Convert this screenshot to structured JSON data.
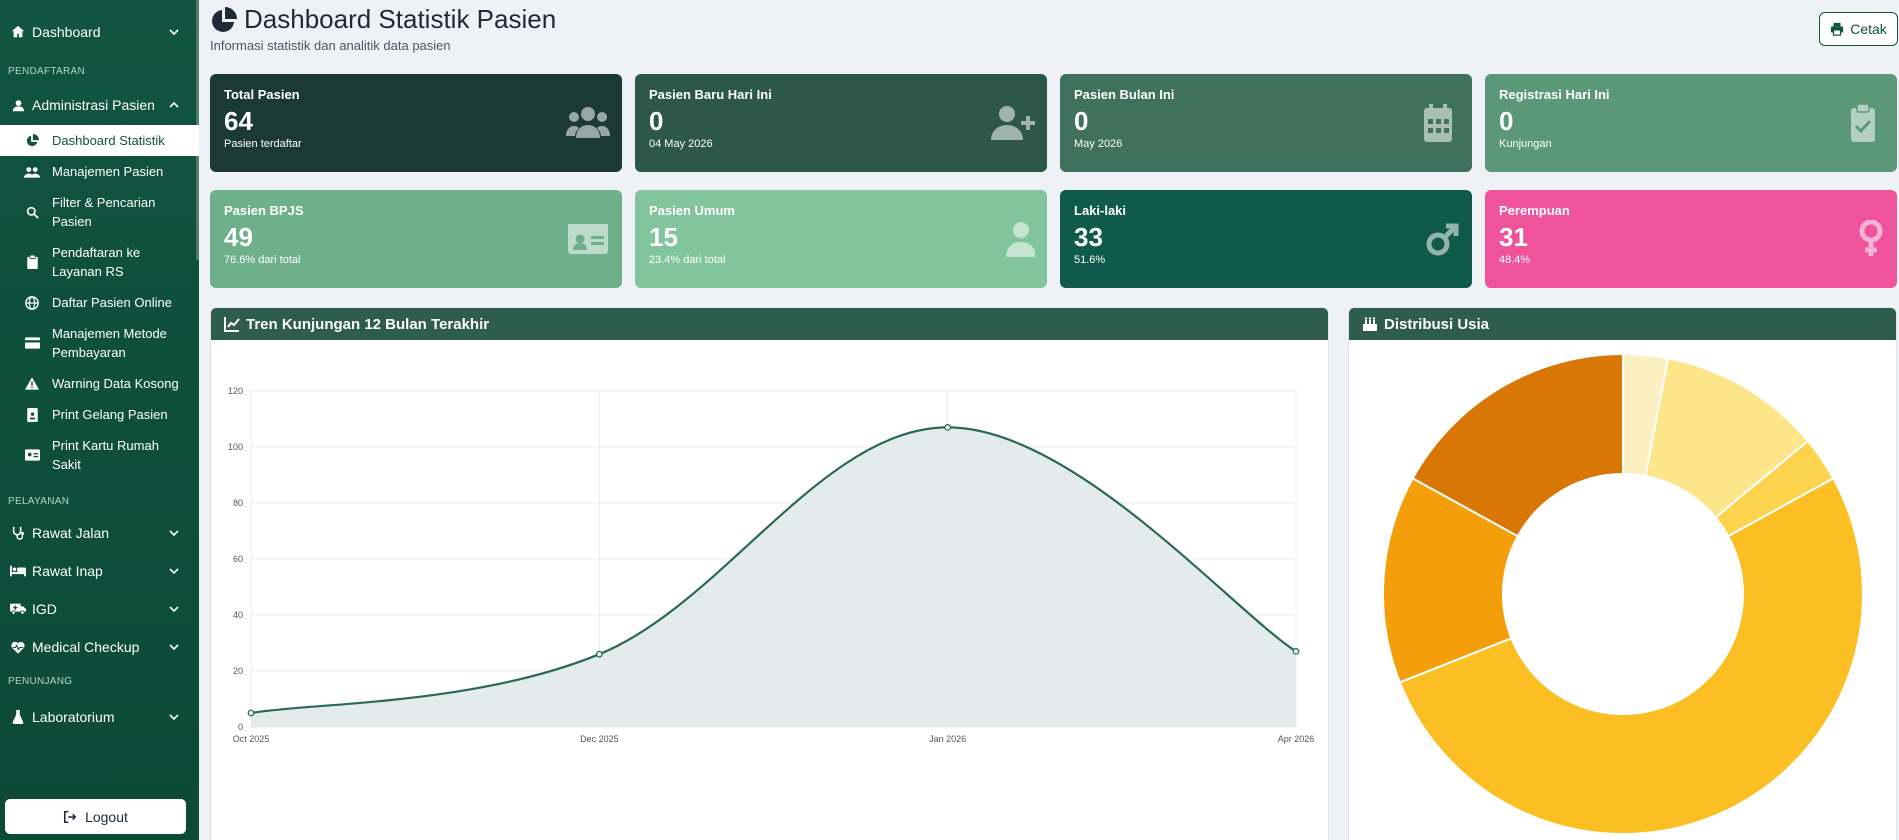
{
  "sidebar": {
    "dashboard": "Dashboard",
    "section_pendaftaran": "PENDAFTARAN",
    "admin_pasien": "Administrasi Pasien",
    "sub_items": [
      {
        "label": "Dashboard Statistik",
        "icon": "chart-pie-icon"
      },
      {
        "label": "Manajemen Pasien",
        "icon": "users-icon"
      },
      {
        "label": "Filter & Pencarian Pasien",
        "icon": "search-icon"
      },
      {
        "label": "Pendaftaran ke Layanan RS",
        "icon": "clipboard-icon"
      },
      {
        "label": "Daftar Pasien Online",
        "icon": "globe-icon"
      },
      {
        "label": "Manajemen Metode Pembayaran",
        "icon": "credit-card-icon"
      },
      {
        "label": "Warning Data Kosong",
        "icon": "warning-icon"
      },
      {
        "label": "Print Gelang Pasien",
        "icon": "id-badge-icon"
      },
      {
        "label": "Print Kartu Rumah Sakit",
        "icon": "id-card-icon"
      }
    ],
    "section_pelayanan": "PELAYANAN",
    "rawat_jalan": "Rawat Jalan",
    "rawat_inap": "Rawat Inap",
    "igd": "IGD",
    "medical_checkup": "Medical Checkup",
    "section_penunjang": "PENUNJANG",
    "laboratorium": "Laboratorium",
    "logout": "Logout"
  },
  "header": {
    "title": "Dashboard Statistik Pasien",
    "subtitle": "Informasi statistik dan analitik data pasien",
    "print_label": "Cetak"
  },
  "cards": [
    {
      "label": "Total Pasien",
      "value": "64",
      "sub": "Pasien terdaftar",
      "color": "#1b3a36",
      "icon": "users-icon"
    },
    {
      "label": "Pasien Baru Hari Ini",
      "value": "0",
      "sub": "04 May 2026",
      "color": "#2c5749",
      "icon": "user-plus-icon"
    },
    {
      "label": "Pasien Bulan Ini",
      "value": "0",
      "sub": "May 2026",
      "color": "#3f715d",
      "icon": "calendar-icon"
    },
    {
      "label": "Registrasi Hari Ini",
      "value": "0",
      "sub": "Kunjungan",
      "color": "#5a9878",
      "icon": "clipboard-check-icon"
    },
    {
      "label": "Pasien BPJS",
      "value": "49",
      "sub": "76.6% dari total",
      "color": "#6db08a",
      "icon": "id-card-icon"
    },
    {
      "label": "Pasien Umum",
      "value": "15",
      "sub": "23.4% dari total",
      "color": "#82c49b",
      "icon": "user-icon"
    },
    {
      "label": "Laki-laki",
      "value": "33",
      "sub": "51.6%",
      "color": "#0f5a4a",
      "icon": "mars-icon"
    },
    {
      "label": "Perempuan",
      "value": "31",
      "sub": "48.4%",
      "color": "#ee539b",
      "icon": "venus-icon"
    }
  ],
  "trend_panel": {
    "title": "Tren Kunjungan 12 Bulan Terakhir"
  },
  "age_panel": {
    "title": "Distribusi Usia"
  },
  "chart_data": [
    {
      "type": "line",
      "x": [
        "Oct 2025",
        "Dec 2025",
        "Jan 2026",
        "Apr 2026"
      ],
      "series": [
        {
          "values": [
            5,
            26,
            107,
            27
          ]
        }
      ],
      "ylim": [
        0,
        120
      ],
      "yticks": [
        0,
        20,
        40,
        60,
        80,
        100,
        120
      ],
      "grid": true,
      "fill": true,
      "colors": {
        "line": "#2a6957",
        "fill": "#e3ecea"
      }
    },
    {
      "type": "pie",
      "donut": true,
      "values": [
        3,
        11,
        3,
        52,
        14,
        17
      ],
      "colors": [
        "#fdf0c0",
        "#fde68a",
        "#fcd34d",
        "#fbbf24",
        "#f59e0b",
        "#d97706"
      ]
    }
  ]
}
